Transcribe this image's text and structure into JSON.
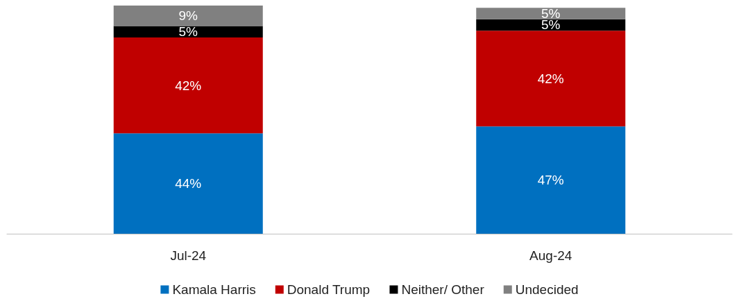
{
  "chart_data": {
    "type": "bar",
    "stacked": true,
    "categories": [
      "Jul-24",
      "Aug-24"
    ],
    "legend": "bottom",
    "grid": false,
    "series": [
      {
        "name": "Kamala Harris",
        "color": "#0070c0",
        "values": [
          44,
          47
        ],
        "value_labels": [
          "44%",
          "47%"
        ]
      },
      {
        "name": "Donald Trump",
        "color": "#c00000",
        "values": [
          42,
          42
        ],
        "value_labels": [
          "42%",
          "42%"
        ]
      },
      {
        "name": "Neither/ Other",
        "color": "#000000",
        "values": [
          5,
          5
        ],
        "value_labels": [
          "5%",
          "5%"
        ]
      },
      {
        "name": "Undecided",
        "color": "#808080",
        "values": [
          9,
          5
        ],
        "value_labels": [
          "9%",
          "5%"
        ]
      }
    ]
  }
}
